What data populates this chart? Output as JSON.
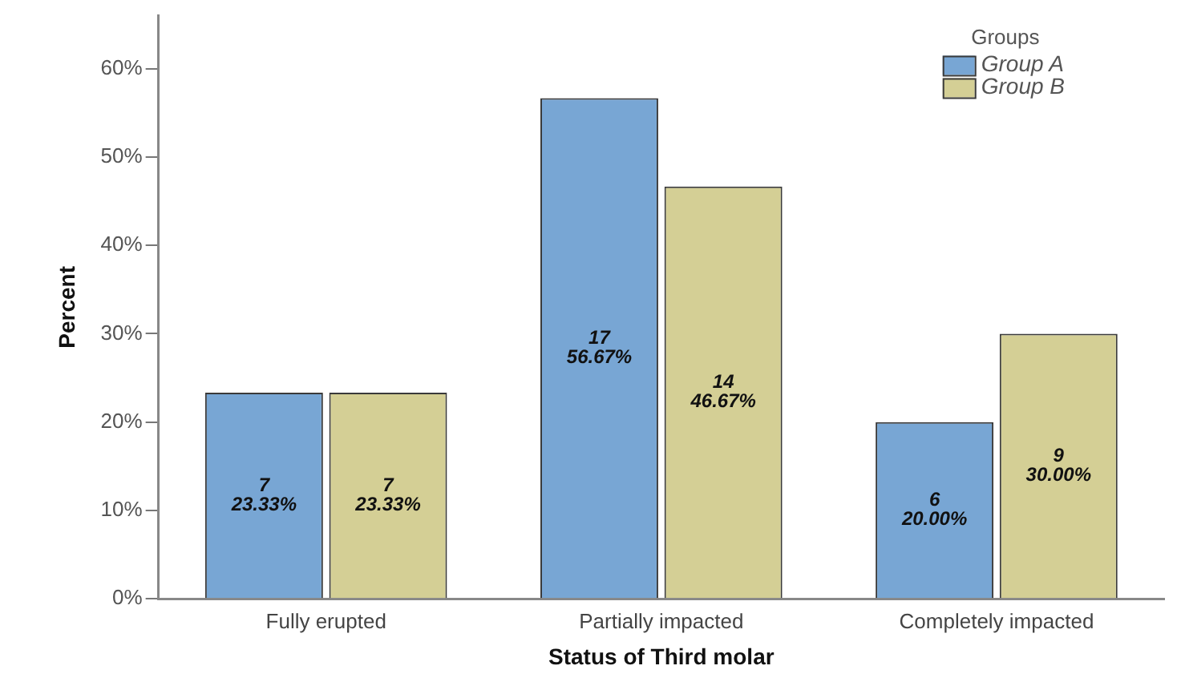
{
  "chart_data": {
    "type": "bar",
    "xlabel": "Status of Third molar",
    "ylabel": "Percent",
    "legend_title": "Groups",
    "categories": [
      "Fully erupted",
      "Partially impacted",
      "Completely impacted"
    ],
    "series": [
      {
        "name": "Group A",
        "color": "#78a6d4",
        "values": [
          23.33,
          56.67,
          20.0
        ],
        "value_labels": [
          "7\n23.33%",
          "17\n56.67%",
          "6\n20.00%"
        ]
      },
      {
        "name": "Group B",
        "color": "#d4cf95",
        "values": [
          23.33,
          46.67,
          30.0
        ],
        "value_labels": [
          "7\n23.33%",
          "14\n46.67%",
          "9\n30.00%"
        ]
      }
    ],
    "ylim": [
      0,
      66
    ],
    "yticks": [
      {
        "value": 0,
        "label": "0%"
      },
      {
        "value": 10,
        "label": "10%"
      },
      {
        "value": 20,
        "label": "20%"
      },
      {
        "value": 30,
        "label": "30%"
      },
      {
        "value": 40,
        "label": "40%"
      },
      {
        "value": 50,
        "label": "50%"
      },
      {
        "value": 60,
        "label": "60%"
      }
    ],
    "grid": false,
    "legend": "top right"
  }
}
